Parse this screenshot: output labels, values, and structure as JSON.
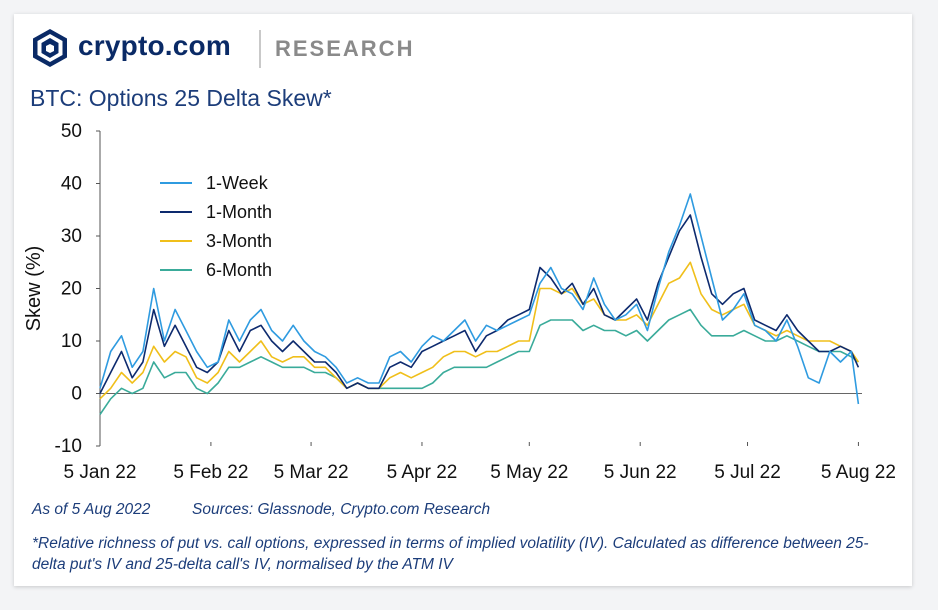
{
  "header": {
    "brand": "crypto.com",
    "section": "RESEARCH"
  },
  "colors": {
    "brand_navy": "#0a2a66",
    "title_blue": "#1c3d7a",
    "one_week": "#2f9be0",
    "one_month": "#0d2a6e",
    "three_month": "#f0bf1a",
    "six_month": "#3aab9a"
  },
  "chart_data": {
    "type": "line",
    "title": "BTC: Options 25 Delta Skew*",
    "ylabel": "Skew (%)",
    "xlabel": "",
    "ylim": [
      -10,
      50
    ],
    "yticks": [
      -10,
      0,
      10,
      20,
      30,
      40,
      50
    ],
    "xlim": [
      "2022-01-05",
      "2022-08-06"
    ],
    "xticks": [
      "2022-01-05",
      "2022-02-05",
      "2022-03-05",
      "2022-04-05",
      "2022-05-05",
      "2022-06-05",
      "2022-07-05",
      "2022-08-05"
    ],
    "xtick_labels": [
      "5 Jan 22",
      "5 Feb 22",
      "5 Mar 22",
      "5 Apr 22",
      "5 May 22",
      "5 Jun 22",
      "5 Jul 22",
      "5 Aug 22"
    ],
    "legend_position": "top-left",
    "x": [
      "2022-01-05",
      "2022-01-08",
      "2022-01-11",
      "2022-01-14",
      "2022-01-17",
      "2022-01-20",
      "2022-01-23",
      "2022-01-26",
      "2022-01-29",
      "2022-02-01",
      "2022-02-04",
      "2022-02-07",
      "2022-02-10",
      "2022-02-13",
      "2022-02-16",
      "2022-02-19",
      "2022-02-22",
      "2022-02-25",
      "2022-02-28",
      "2022-03-03",
      "2022-03-06",
      "2022-03-09",
      "2022-03-12",
      "2022-03-15",
      "2022-03-18",
      "2022-03-21",
      "2022-03-24",
      "2022-03-27",
      "2022-03-30",
      "2022-04-02",
      "2022-04-05",
      "2022-04-08",
      "2022-04-11",
      "2022-04-14",
      "2022-04-17",
      "2022-04-20",
      "2022-04-23",
      "2022-04-26",
      "2022-04-29",
      "2022-05-02",
      "2022-05-05",
      "2022-05-08",
      "2022-05-11",
      "2022-05-14",
      "2022-05-17",
      "2022-05-20",
      "2022-05-23",
      "2022-05-26",
      "2022-05-29",
      "2022-06-01",
      "2022-06-04",
      "2022-06-07",
      "2022-06-10",
      "2022-06-13",
      "2022-06-16",
      "2022-06-19",
      "2022-06-22",
      "2022-06-25",
      "2022-06-28",
      "2022-07-01",
      "2022-07-04",
      "2022-07-07",
      "2022-07-10",
      "2022-07-13",
      "2022-07-16",
      "2022-07-19",
      "2022-07-22",
      "2022-07-25",
      "2022-07-28",
      "2022-07-31",
      "2022-08-03",
      "2022-08-05"
    ],
    "series": [
      {
        "name": "1-Week",
        "color": "#2f9be0",
        "values": [
          1,
          8,
          11,
          5,
          8,
          20,
          10,
          16,
          12,
          8,
          5,
          6,
          14,
          10,
          14,
          16,
          12,
          10,
          13,
          10,
          8,
          7,
          5,
          2,
          3,
          2,
          2,
          7,
          8,
          6,
          9,
          11,
          10,
          12,
          14,
          10,
          13,
          12,
          13,
          14,
          15,
          21,
          24,
          20,
          19,
          16,
          22,
          17,
          14,
          15,
          17,
          12,
          20,
          27,
          32,
          38,
          30,
          22,
          14,
          16,
          19,
          13,
          12,
          10,
          14,
          9,
          3,
          2,
          8,
          6,
          8,
          -2
        ]
      },
      {
        "name": "1-Month",
        "color": "#0d2a6e",
        "values": [
          0,
          4,
          8,
          3,
          6,
          16,
          9,
          13,
          9,
          5,
          4,
          6,
          12,
          8,
          12,
          13,
          10,
          8,
          10,
          8,
          6,
          6,
          4,
          1,
          2,
          1,
          1,
          5,
          6,
          5,
          8,
          9,
          10,
          11,
          12,
          8,
          11,
          12,
          14,
          15,
          16,
          24,
          22,
          19,
          21,
          17,
          20,
          15,
          14,
          16,
          18,
          14,
          21,
          26,
          31,
          34,
          26,
          19,
          17,
          19,
          20,
          14,
          13,
          12,
          15,
          12,
          10,
          8,
          8,
          9,
          8,
          5
        ]
      },
      {
        "name": "3-Month",
        "color": "#f0bf1a",
        "values": [
          -1,
          1,
          4,
          2,
          4,
          9,
          6,
          8,
          7,
          3,
          2,
          4,
          8,
          6,
          8,
          10,
          7,
          6,
          7,
          7,
          5,
          5,
          3,
          1,
          2,
          1,
          1,
          3,
          4,
          3,
          4,
          5,
          7,
          8,
          8,
          7,
          8,
          8,
          9,
          10,
          10,
          20,
          20,
          19,
          20,
          17,
          18,
          15,
          14,
          14,
          15,
          13,
          17,
          21,
          22,
          25,
          19,
          16,
          15,
          16,
          17,
          13,
          12,
          11,
          12,
          11,
          10,
          10,
          10,
          9,
          8,
          6
        ]
      },
      {
        "name": "6-Month",
        "color": "#3aab9a",
        "values": [
          -4,
          -1,
          1,
          0,
          1,
          6,
          3,
          4,
          4,
          1,
          0,
          2,
          5,
          5,
          6,
          7,
          6,
          5,
          5,
          5,
          4,
          4,
          3,
          1,
          2,
          1,
          1,
          1,
          1,
          1,
          1,
          2,
          4,
          5,
          5,
          5,
          5,
          6,
          7,
          8,
          8,
          13,
          14,
          14,
          14,
          12,
          13,
          12,
          12,
          11,
          12,
          10,
          12,
          14,
          15,
          16,
          13,
          11,
          11,
          11,
          12,
          11,
          10,
          10,
          11,
          10,
          9,
          8,
          8,
          8,
          7,
          6
        ]
      }
    ]
  },
  "footer": {
    "as_of": "As of 5 Aug 2022",
    "sources": "Sources: Glassnode, Crypto.com Research",
    "note": "*Relative richness of put vs. call options, expressed in terms of implied volatility (IV). Calculated as difference between 25-delta put's IV and 25-delta call's IV, normalised by the ATM IV"
  }
}
